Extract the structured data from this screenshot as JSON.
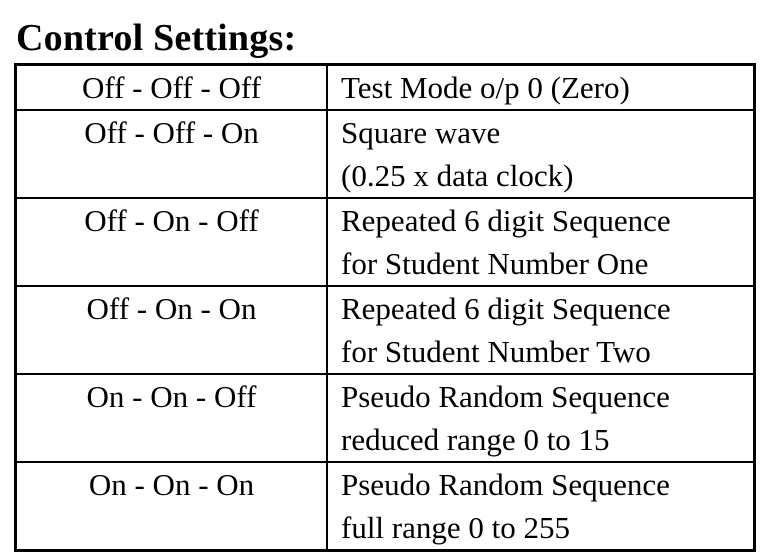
{
  "title": "Control Settings:",
  "rows": [
    {
      "switches": "Off - Off - Off",
      "description": [
        "Test Mode o/p 0 (Zero)"
      ]
    },
    {
      "switches": "Off - Off - On",
      "description": [
        "Square wave",
        "(0.25 x data clock)"
      ]
    },
    {
      "switches": "Off - On - Off",
      "description": [
        "Repeated 6 digit Sequence",
        "for Student Number One"
      ]
    },
    {
      "switches": "Off - On - On",
      "description": [
        "Repeated 6 digit Sequence",
        "for Student Number Two"
      ]
    },
    {
      "switches": "On - On - Off",
      "description": [
        "Pseudo Random Sequence",
        "reduced range 0 to 15"
      ]
    },
    {
      "switches": "On - On - On",
      "description": [
        "Pseudo Random Sequence",
        "full range 0 to 255"
      ]
    }
  ]
}
